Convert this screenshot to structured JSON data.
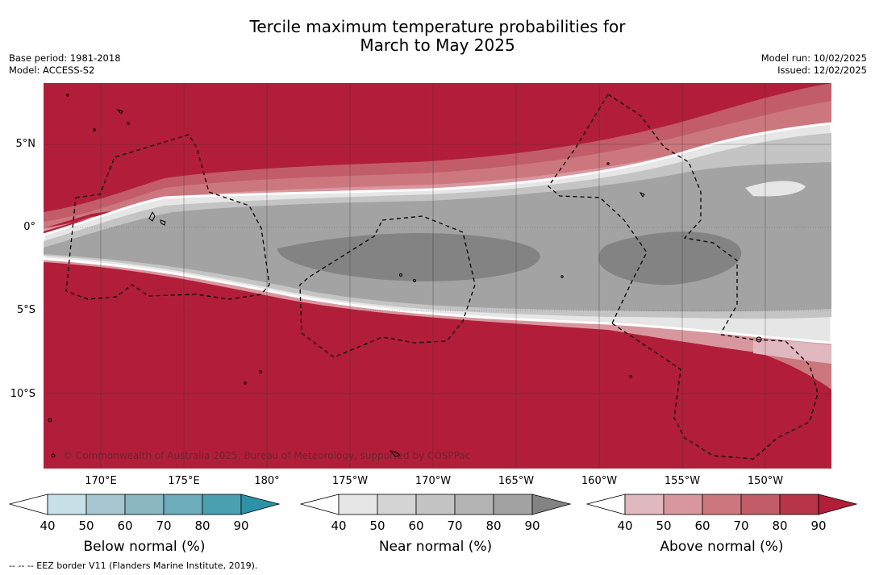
{
  "title": {
    "line1": "Tercile maximum temperature probabilities for",
    "line2": "March to May 2025"
  },
  "meta": {
    "base_period": "Base period: 1981-2018",
    "model": "Model: ACCESS-S2",
    "model_run": "Model run: 10/02/2025",
    "issued": "Issued: 12/02/2025"
  },
  "map": {
    "lat_labels": [
      "5°N",
      "0°",
      "5°S",
      "10°S"
    ],
    "lon_labels": [
      "170°E",
      "175°E",
      "180°",
      "175°W",
      "170°W",
      "165°W",
      "160°W",
      "155°W",
      "150°W"
    ],
    "copyright": "© Commonwealth of Australia 2025, Bureau of Meteorology, supported by COSPPac",
    "colors": {
      "above_dominant": "#b21e3a",
      "near_dominant": "#a3a3a3",
      "land_outline": "#000000",
      "eez_border": "#000000"
    }
  },
  "colorbars": [
    {
      "title": "Below normal (%)",
      "ticks": [
        "40",
        "50",
        "60",
        "70",
        "80",
        "90"
      ],
      "colors": [
        "#c8e1e8",
        "#a6c7cf",
        "#8ab6c1",
        "#6cacbb",
        "#4a9fb0",
        "#2c93a6"
      ]
    },
    {
      "title": "Near normal (%)",
      "ticks": [
        "40",
        "50",
        "60",
        "70",
        "80",
        "90"
      ],
      "colors": [
        "#e6e6e6",
        "#d4d4d4",
        "#c4c4c4",
        "#b4b4b4",
        "#a3a3a3",
        "#838383"
      ]
    },
    {
      "title": "Above normal (%)",
      "ticks": [
        "40",
        "50",
        "60",
        "70",
        "80",
        "90"
      ],
      "colors": [
        "#e0b8bf",
        "#d8979e",
        "#cc777e",
        "#c25c68",
        "#b83448",
        "#b21e3a"
      ]
    }
  ],
  "footer": "--  --  -- EEZ border V11 (Flanders Marine Institute, 2019)."
}
